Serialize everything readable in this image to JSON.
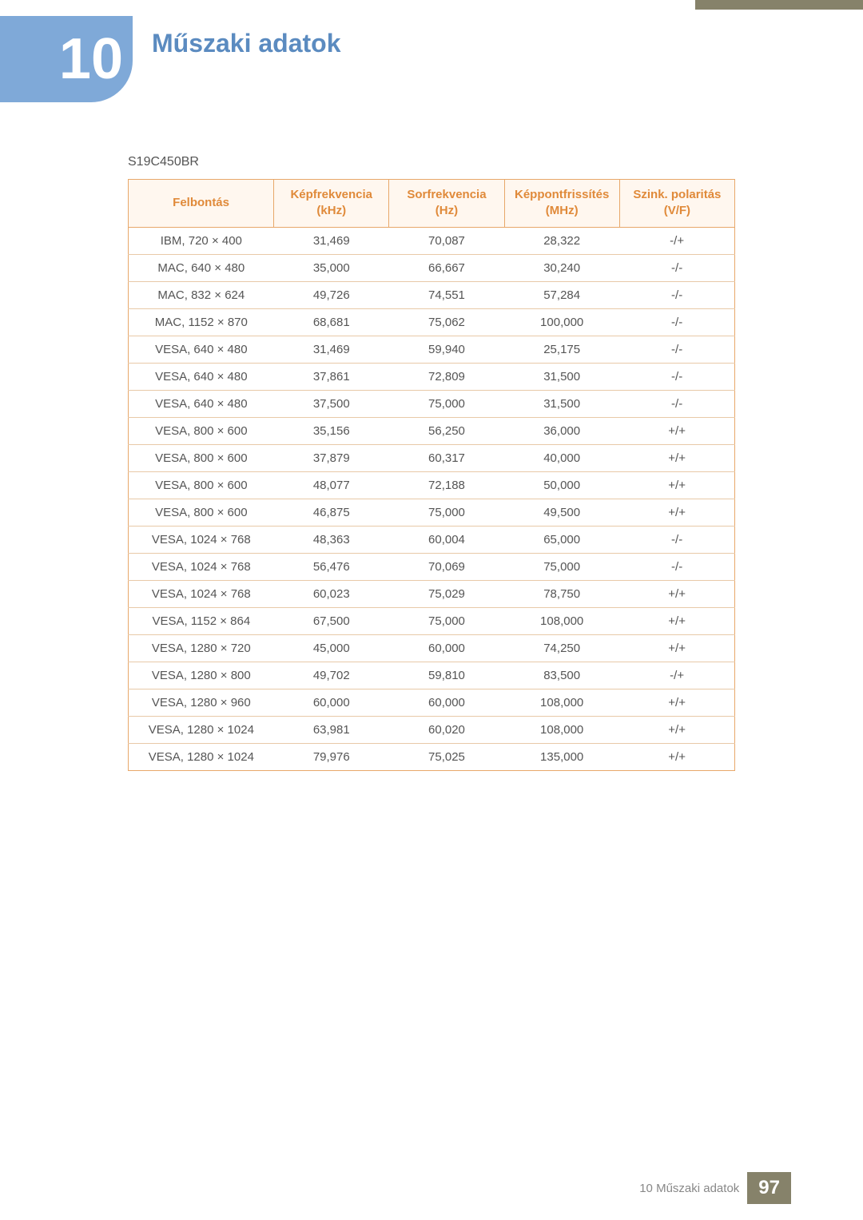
{
  "chapter": {
    "number": "10",
    "title": "Műszaki adatok"
  },
  "model": "S19C450BR",
  "table": {
    "columns": [
      "Felbontás",
      "Képfrekvencia (kHz)",
      "Sorfrekvencia (Hz)",
      "Képpontfrissítés (MHz)",
      "Szink. polaritás (V/F)"
    ],
    "rows": [
      [
        "IBM, 720 × 400",
        "31,469",
        "70,087",
        "28,322",
        "-/+"
      ],
      [
        "MAC, 640 × 480",
        "35,000",
        "66,667",
        "30,240",
        "-/-"
      ],
      [
        "MAC, 832 × 624",
        "49,726",
        "74,551",
        "57,284",
        "-/-"
      ],
      [
        "MAC, 1152 × 870",
        "68,681",
        "75,062",
        "100,000",
        "-/-"
      ],
      [
        "VESA, 640 × 480",
        "31,469",
        "59,940",
        "25,175",
        "-/-"
      ],
      [
        "VESA, 640 × 480",
        "37,861",
        "72,809",
        "31,500",
        "-/-"
      ],
      [
        "VESA, 640 × 480",
        "37,500",
        "75,000",
        "31,500",
        "-/-"
      ],
      [
        "VESA, 800 × 600",
        "35,156",
        "56,250",
        "36,000",
        "+/+"
      ],
      [
        "VESA, 800 × 600",
        "37,879",
        "60,317",
        "40,000",
        "+/+"
      ],
      [
        "VESA, 800 × 600",
        "48,077",
        "72,188",
        "50,000",
        "+/+"
      ],
      [
        "VESA, 800 × 600",
        "46,875",
        "75,000",
        "49,500",
        "+/+"
      ],
      [
        "VESA, 1024 × 768",
        "48,363",
        "60,004",
        "65,000",
        "-/-"
      ],
      [
        "VESA, 1024 × 768",
        "56,476",
        "70,069",
        "75,000",
        "-/-"
      ],
      [
        "VESA, 1024 × 768",
        "60,023",
        "75,029",
        "78,750",
        "+/+"
      ],
      [
        "VESA, 1152 × 864",
        "67,500",
        "75,000",
        "108,000",
        "+/+"
      ],
      [
        "VESA, 1280 × 720",
        "45,000",
        "60,000",
        "74,250",
        "+/+"
      ],
      [
        "VESA, 1280 × 800",
        "49,702",
        "59,810",
        "83,500",
        "-/+"
      ],
      [
        "VESA, 1280 × 960",
        "60,000",
        "60,000",
        "108,000",
        "+/+"
      ],
      [
        "VESA, 1280 × 1024",
        "63,981",
        "60,020",
        "108,000",
        "+/+"
      ],
      [
        "VESA, 1280 × 1024",
        "79,976",
        "75,025",
        "135,000",
        "+/+"
      ]
    ],
    "header_bg": "#fff7ef",
    "header_color": "#e08a3a",
    "border_color": "#e8a86a",
    "row_border_color": "#e8c9a8",
    "text_color": "#555555"
  },
  "footer": {
    "text": "10 Műszaki adatok",
    "page": "97"
  }
}
